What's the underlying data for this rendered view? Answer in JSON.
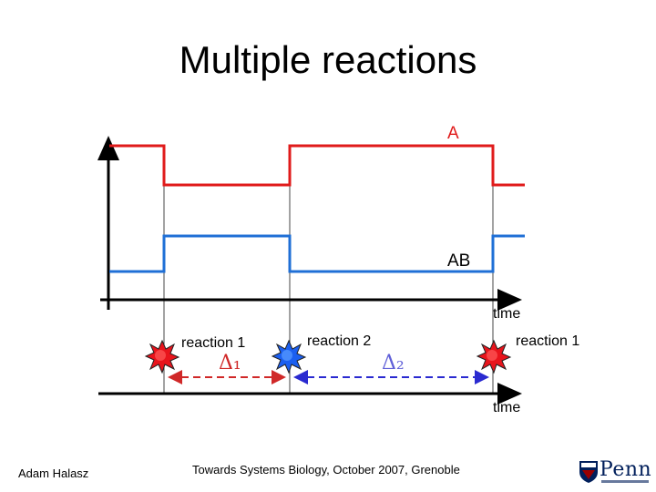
{
  "title": "Multiple reactions",
  "signals": {
    "a_label": "A",
    "ab_label": "AB"
  },
  "axes": {
    "upper_time_label": "time",
    "lower_time_label": "time"
  },
  "events": {
    "reaction1_label": "reaction 1",
    "reaction2_label": "reaction 2",
    "reaction3_label": "reaction 1",
    "delta1": "Δ₁",
    "delta2": "Δ₂"
  },
  "footer": {
    "author": "Adam Halasz",
    "venue": "Towards Systems Biology, October 2007, Grenoble",
    "logo_text": "Penn"
  },
  "colors": {
    "a_signal": "#e01b1b",
    "ab_signal": "#1f6fd6",
    "delta1": "#d02828",
    "delta2": "#2a2ad0",
    "logo": "#011f5b"
  }
}
